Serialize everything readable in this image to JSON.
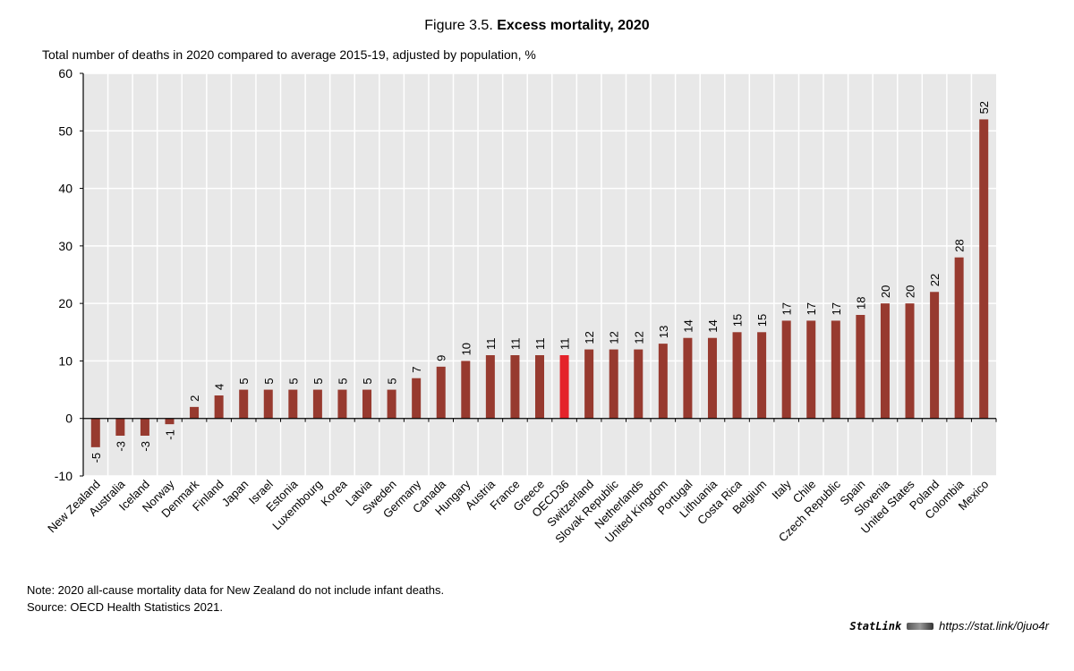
{
  "header": {
    "figure_number": "Figure 3.5.",
    "title": "Excess mortality, 2020"
  },
  "colors": {
    "bar": "#973a2f",
    "highlight": "#e4232a",
    "plot_bg": "#e8e8e8"
  },
  "chart_data": {
    "type": "bar",
    "title": "Excess mortality, 2020",
    "ylabel": "Total number of deaths in 2020 compared to average 2015-19, adjusted by population, %",
    "ylim": [
      -10,
      60
    ],
    "yticks": [
      -10,
      0,
      10,
      20,
      30,
      40,
      50,
      60
    ],
    "grid": true,
    "highlight": "OECD36",
    "categories": [
      "New Zealand",
      "Australia",
      "Iceland",
      "Norway",
      "Denmark",
      "Finland",
      "Japan",
      "Israel",
      "Estonia",
      "Luxembourg",
      "Korea",
      "Latvia",
      "Sweden",
      "Germany",
      "Canada",
      "Hungary",
      "Austria",
      "France",
      "Greece",
      "OECD36",
      "Switzerland",
      "Slovak Republic",
      "Netherlands",
      "United Kingdom",
      "Portugal",
      "Lithuania",
      "Costa Rica",
      "Belgium",
      "Italy",
      "Chile",
      "Czech Republic",
      "Spain",
      "Slovenia",
      "United States",
      "Poland",
      "Colombia",
      "Mexico"
    ],
    "values": [
      -5,
      -3,
      -3,
      -1,
      2,
      4,
      5,
      5,
      5,
      5,
      5,
      5,
      5,
      7,
      9,
      10,
      11,
      11,
      11,
      11,
      12,
      12,
      12,
      13,
      14,
      14,
      15,
      15,
      17,
      17,
      17,
      18,
      20,
      20,
      22,
      28,
      52
    ]
  },
  "footer": {
    "note": "Note: 2020 all-cause mortality data for New Zealand do not include infant deaths.",
    "source": "Source: OECD Health Statistics 2021.",
    "statlink_label": "StatLink",
    "statlink_url": "https://stat.link/0juo4r"
  }
}
